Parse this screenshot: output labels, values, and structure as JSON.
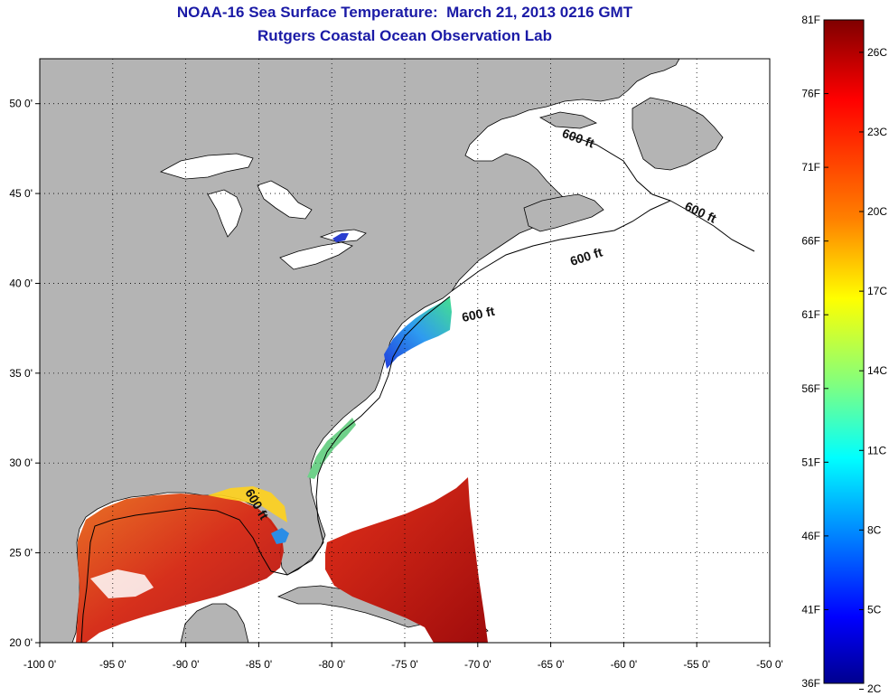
{
  "title": "NOAA-16 Sea Surface Temperature:  March 21, 2013 0216 GMT",
  "subtitle": "Rutgers Coastal Ocean Observation Lab",
  "map": {
    "lon_range": [
      -100,
      -50
    ],
    "lat_range": [
      20,
      52.5
    ],
    "x_ticks": [
      "-100 0'",
      "-95 0'",
      "-90 0'",
      "-85 0'",
      "-80 0'",
      "-75 0'",
      "-70 0'",
      "-65 0'",
      "-60 0'",
      "-55 0'",
      "-50 0'"
    ],
    "y_ticks": [
      "50 0'",
      "45 0'",
      "40 0'",
      "35 0'",
      "30 0'",
      "25 0'",
      "20 0'"
    ],
    "land_color": "#b4b4b4",
    "ocean_color": "#ffffff",
    "grid": "dotted",
    "contour_labels": [
      "600 ft",
      "600 ft",
      "600 ft",
      "600 ft",
      "600 ft"
    ]
  },
  "colorbar": {
    "f_labels": [
      "81F",
      "76F",
      "71F",
      "66F",
      "61F",
      "56F",
      "51F",
      "46F",
      "41F",
      "36F"
    ],
    "c_labels": [
      "26C",
      "23C",
      "20C",
      "17C",
      "14C",
      "11C",
      "8C",
      "5C",
      "2C"
    ],
    "colors": [
      "#7f0000",
      "#ff0000",
      "#ff8000",
      "#ffff00",
      "#80ff80",
      "#00ffff",
      "#0080ff",
      "#0000ff",
      "#00008f"
    ]
  }
}
